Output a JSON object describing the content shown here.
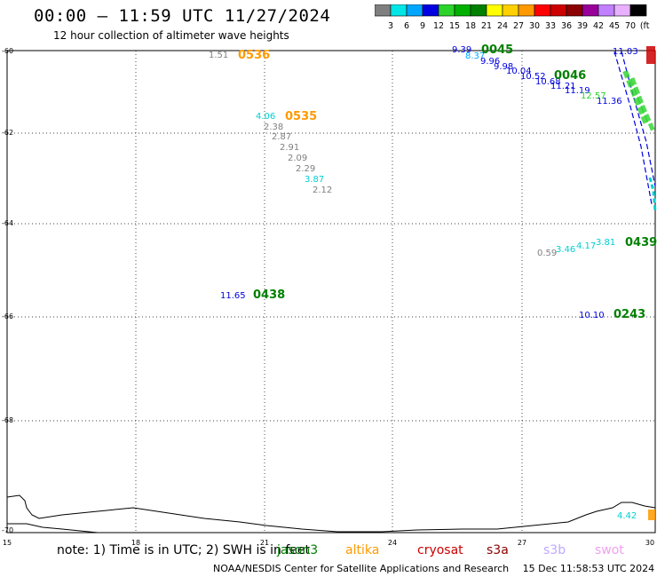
{
  "title": "00:00 – 11:59 UTC 11/27/2024",
  "subtitle": "12 hour collection of altimeter wave heights",
  "colorbar": {
    "ticks": [
      "3",
      "6",
      "9",
      "12",
      "15",
      "18",
      "21",
      "24",
      "27",
      "30",
      "33",
      "36",
      "39",
      "42",
      "45",
      "70",
      "(ft)"
    ],
    "colors": [
      "#7f7f7f",
      "#00e5e5",
      "#00a6ff",
      "#0000e0",
      "#2bd32b",
      "#00b000",
      "#008000",
      "#ffff00",
      "#ffd000",
      "#ff9900",
      "#ff0000",
      "#cc0000",
      "#8b0000",
      "#990099",
      "#c080ff",
      "#e8b0ff",
      "#000000"
    ]
  },
  "axes": {
    "y_labels": [
      "-60",
      "-62",
      "-64",
      "-66",
      "-68",
      "-70"
    ],
    "x_labels": [
      "15",
      "18",
      "21",
      "24",
      "27",
      "30"
    ]
  },
  "note": "note: 1) Time is in UTC; 2) SWH is in feet",
  "satellites": [
    {
      "name": "jason3",
      "color": "#008000"
    },
    {
      "name": "altika",
      "color": "#ff9900"
    },
    {
      "name": "cryosat",
      "color": "#cc0000"
    },
    {
      "name": "s3a",
      "color": "#8b0000"
    },
    {
      "name": "s3b",
      "color": "#c0a8ff"
    },
    {
      "name": "swot",
      "color": "#f0a0f0"
    }
  ],
  "footer": {
    "org": "NOAA/NESDIS Center for Satellite Applications and Research",
    "timestamp": "15 Dec 11:58:53 UTC 2024"
  },
  "track_labels": [
    {
      "text": "0536",
      "color": "#ff9900"
    },
    {
      "text": "0535",
      "color": "#ff9900"
    },
    {
      "text": "0045",
      "color": "#008000"
    },
    {
      "text": "0046",
      "color": "#008000"
    },
    {
      "text": "0439",
      "color": "#008000"
    },
    {
      "text": "0438",
      "color": "#008000"
    },
    {
      "text": "0243",
      "color": "#008000"
    }
  ],
  "swh_values": [
    {
      "text": "1.51",
      "color": "#7f7f7f"
    },
    {
      "text": "4.06",
      "color": "#00d0d0"
    },
    {
      "text": "2.38",
      "color": "#7f7f7f"
    },
    {
      "text": "2.87",
      "color": "#7f7f7f"
    },
    {
      "text": "2.91",
      "color": "#7f7f7f"
    },
    {
      "text": "2.09",
      "color": "#7f7f7f"
    },
    {
      "text": "2.29",
      "color": "#7f7f7f"
    },
    {
      "text": "3.87",
      "color": "#00d0d0"
    },
    {
      "text": "2.12",
      "color": "#7f7f7f"
    },
    {
      "text": "9.39",
      "color": "#0000e0"
    },
    {
      "text": "8.37",
      "color": "#00a6ff"
    },
    {
      "text": "9.96",
      "color": "#0000e0"
    },
    {
      "text": "9.98",
      "color": "#0000e0"
    },
    {
      "text": "10.04",
      "color": "#0000e0"
    },
    {
      "text": "10.52",
      "color": "#0000e0"
    },
    {
      "text": "10.68",
      "color": "#0000e0"
    },
    {
      "text": "11.21",
      "color": "#0000e0"
    },
    {
      "text": "11.19",
      "color": "#0000e0"
    },
    {
      "text": "12.57",
      "color": "#2bd32b"
    },
    {
      "text": "11.36",
      "color": "#0000e0"
    },
    {
      "text": "11.03",
      "color": "#0000e0"
    },
    {
      "text": "0.59",
      "color": "#7f7f7f"
    },
    {
      "text": "3.46",
      "color": "#00d0d0"
    },
    {
      "text": "4.17",
      "color": "#00d0d0"
    },
    {
      "text": "3.81",
      "color": "#00d0d0"
    },
    {
      "text": "11.65",
      "color": "#0000e0"
    },
    {
      "text": "10.10",
      "color": "#0000e0"
    },
    {
      "text": "4.42",
      "color": "#00d0d0"
    }
  ]
}
